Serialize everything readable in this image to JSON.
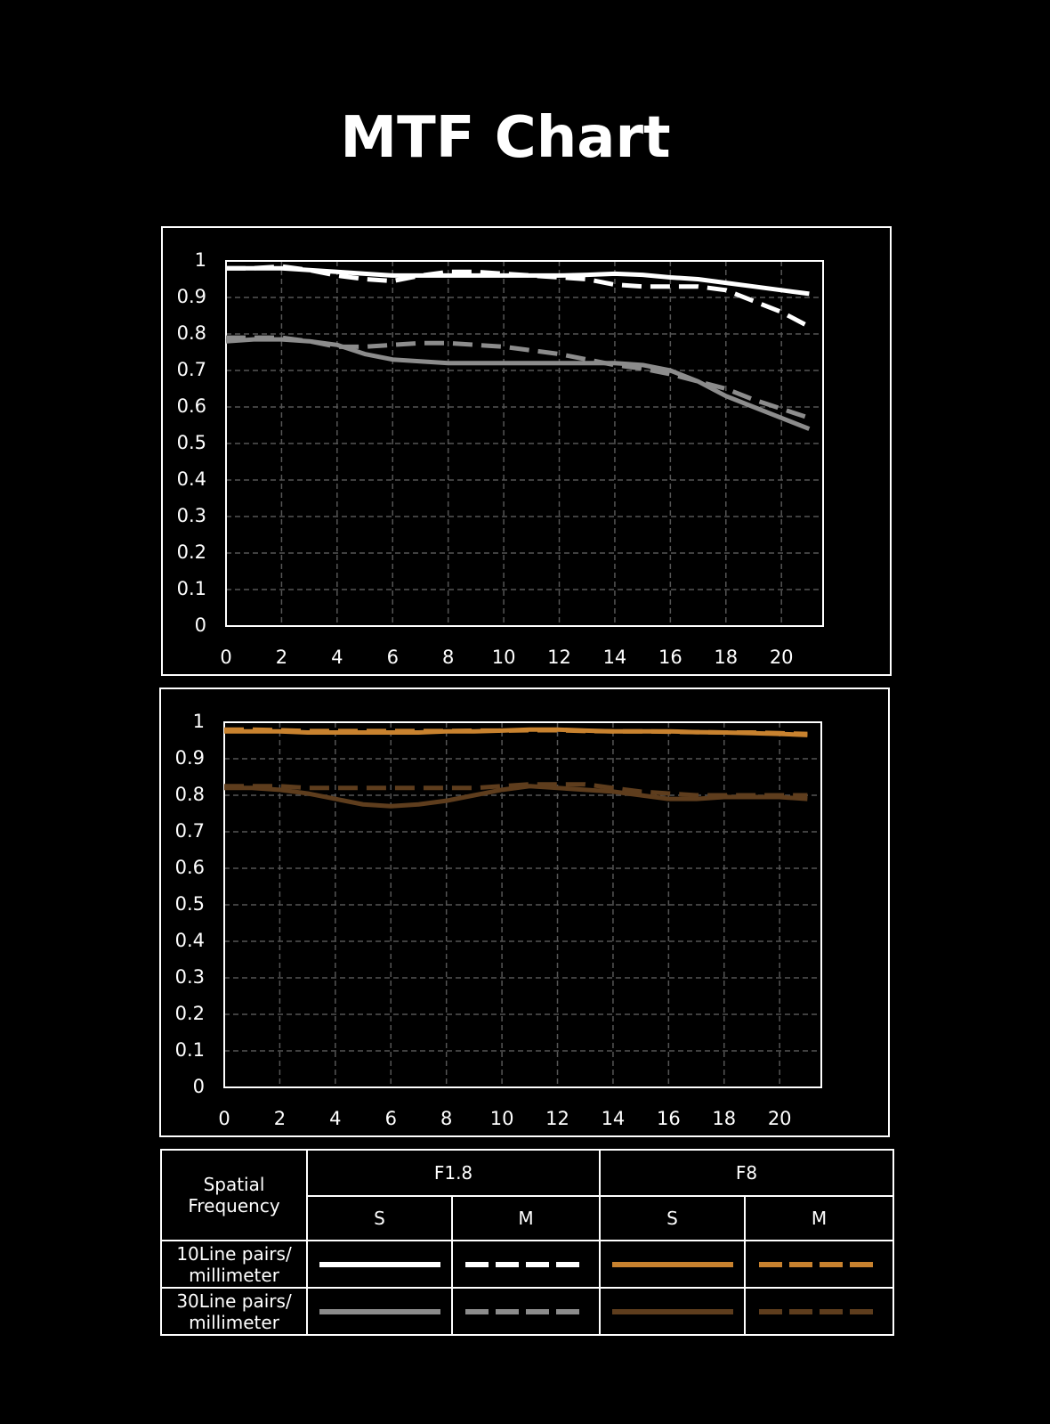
{
  "title": "MTF Chart",
  "chart_data": [
    {
      "type": "line",
      "x": [
        0,
        1,
        2,
        3,
        4,
        5,
        6,
        7,
        8,
        9,
        10,
        11,
        12,
        13,
        14,
        15,
        16,
        17,
        18,
        19,
        20,
        21
      ],
      "xlim": [
        0,
        21.5
      ],
      "xticks": [
        0,
        2,
        4,
        6,
        8,
        10,
        12,
        14,
        16,
        18,
        20
      ],
      "ylim": [
        0,
        1
      ],
      "yticks": [
        0,
        0.1,
        0.2,
        0.3,
        0.4,
        0.5,
        0.6,
        0.7,
        0.8,
        0.9,
        1
      ],
      "grid": true,
      "series": [
        {
          "color": "#ffffff",
          "dashed": false,
          "values": [
            0.98,
            0.98,
            0.98,
            0.975,
            0.97,
            0.965,
            0.96,
            0.96,
            0.96,
            0.96,
            0.96,
            0.96,
            0.96,
            0.962,
            0.965,
            0.962,
            0.955,
            0.95,
            0.94,
            0.93,
            0.92,
            0.91
          ]
        },
        {
          "color": "#ffffff",
          "dashed": true,
          "values": [
            0.98,
            0.98,
            0.985,
            0.975,
            0.96,
            0.95,
            0.945,
            0.96,
            0.97,
            0.97,
            0.965,
            0.96,
            0.955,
            0.95,
            0.935,
            0.93,
            0.93,
            0.93,
            0.92,
            0.89,
            0.86,
            0.82
          ]
        },
        {
          "color": "#8c8c8c",
          "dashed": false,
          "values": [
            0.78,
            0.785,
            0.785,
            0.78,
            0.77,
            0.745,
            0.73,
            0.725,
            0.72,
            0.72,
            0.72,
            0.72,
            0.72,
            0.72,
            0.72,
            0.715,
            0.7,
            0.67,
            0.63,
            0.6,
            0.57,
            0.54
          ]
        },
        {
          "color": "#8c8c8c",
          "dashed": true,
          "values": [
            0.79,
            0.79,
            0.79,
            0.78,
            0.765,
            0.765,
            0.77,
            0.775,
            0.775,
            0.77,
            0.765,
            0.755,
            0.745,
            0.73,
            0.715,
            0.705,
            0.69,
            0.67,
            0.65,
            0.62,
            0.595,
            0.57
          ]
        }
      ]
    },
    {
      "type": "line",
      "x": [
        0,
        1,
        2,
        3,
        4,
        5,
        6,
        7,
        8,
        9,
        10,
        11,
        12,
        13,
        14,
        15,
        16,
        17,
        18,
        19,
        20,
        21
      ],
      "xlim": [
        0,
        21.5
      ],
      "xticks": [
        0,
        2,
        4,
        6,
        8,
        10,
        12,
        14,
        16,
        18,
        20
      ],
      "ylim": [
        0,
        1
      ],
      "yticks": [
        0,
        0.1,
        0.2,
        0.3,
        0.4,
        0.5,
        0.6,
        0.7,
        0.8,
        0.9,
        1
      ],
      "grid": true,
      "series": [
        {
          "color": "#c8822f",
          "dashed": false,
          "values": [
            0.975,
            0.975,
            0.975,
            0.972,
            0.972,
            0.972,
            0.972,
            0.972,
            0.975,
            0.975,
            0.977,
            0.98,
            0.98,
            0.977,
            0.975,
            0.975,
            0.975,
            0.973,
            0.972,
            0.97,
            0.968,
            0.965
          ]
        },
        {
          "color": "#c8822f",
          "dashed": true,
          "values": [
            0.98,
            0.98,
            0.978,
            0.976,
            0.976,
            0.976,
            0.976,
            0.976,
            0.976,
            0.977,
            0.977,
            0.978,
            0.978,
            0.976,
            0.975,
            0.975,
            0.974,
            0.973,
            0.972,
            0.972,
            0.97,
            0.968
          ]
        },
        {
          "color": "#5e3d1d",
          "dashed": false,
          "values": [
            0.82,
            0.82,
            0.815,
            0.805,
            0.79,
            0.775,
            0.77,
            0.775,
            0.785,
            0.8,
            0.815,
            0.825,
            0.82,
            0.815,
            0.81,
            0.8,
            0.79,
            0.79,
            0.795,
            0.795,
            0.795,
            0.79
          ]
        },
        {
          "color": "#5e3d1d",
          "dashed": true,
          "values": [
            0.825,
            0.825,
            0.825,
            0.82,
            0.82,
            0.82,
            0.82,
            0.82,
            0.82,
            0.82,
            0.825,
            0.83,
            0.83,
            0.83,
            0.82,
            0.81,
            0.805,
            0.8,
            0.8,
            0.8,
            0.8,
            0.8
          ]
        }
      ]
    }
  ],
  "legend_table": {
    "header": "Spatial\nFrequency",
    "apertures": [
      "F1.8",
      "F8"
    ],
    "types": [
      "S",
      "M",
      "S",
      "M"
    ],
    "rows": [
      "10Line pairs/\nmillimeter",
      "30Line pairs/\nmillimeter"
    ]
  }
}
